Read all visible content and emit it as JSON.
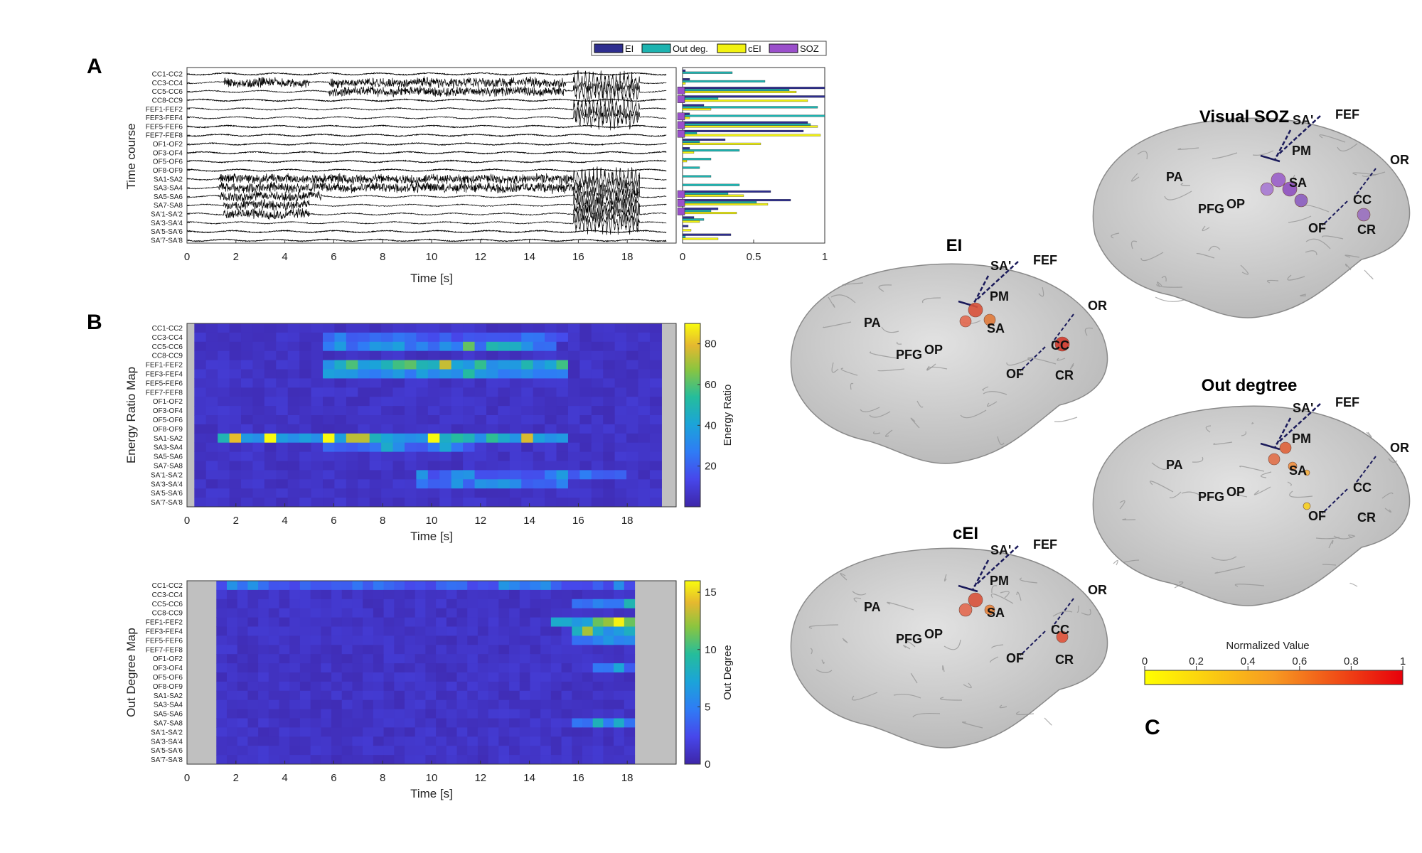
{
  "panel_labels": {
    "a": "A",
    "b": "B",
    "c": "C"
  },
  "channels": [
    "CC1-CC2",
    "CC3-CC4",
    "CC5-CC6",
    "CC8-CC9",
    "FEF1-FEF2",
    "FEF3-FEF4",
    "FEF5-FEF6",
    "FEF7-FEF8",
    "OF1-OF2",
    "OF3-OF4",
    "OF5-OF6",
    "OF8-OF9",
    "SA1-SA2",
    "SA3-SA4",
    "SA5-SA6",
    "SA7-SA8",
    "SA'1-SA'2",
    "SA'3-SA'4",
    "SA'5-SA'6",
    "SA'7-SA'8"
  ],
  "colors": {
    "ei": "#2e2e8f",
    "outdeg": "#1db3b0",
    "cei": "#f2f210",
    "soz": "#9a4fcb",
    "cbar_low": "#ffff00",
    "cbar_high": "#e8000b"
  },
  "brains": [
    {
      "key": "ei",
      "title": "EI"
    },
    {
      "key": "cei",
      "title": "cEI"
    },
    {
      "key": "soz",
      "title": "Visual SOZ"
    },
    {
      "key": "outdeg",
      "title": "Out degtree"
    }
  ],
  "regions": [
    "SA'",
    "FEF",
    "PM",
    "SA",
    "OR",
    "PA",
    "PFG",
    "OP",
    "CC",
    "OF",
    "CR"
  ],
  "chart_data": [
    {
      "type": "line",
      "title": "",
      "ylabel": "Time course",
      "xlabel": "Time [s]",
      "xlim": [
        0,
        20
      ],
      "xticks": [
        0,
        2,
        4,
        6,
        8,
        10,
        12,
        14,
        16,
        18
      ],
      "series_are": "one iEEG trace per channel (bipolar montage)",
      "active_intervals_s": {
        "CC3-CC4": [
          [
            1.5,
            5.0
          ],
          [
            5.8,
            15.5
          ],
          [
            15.8,
            18.5
          ]
        ],
        "CC5-CC6": [
          [
            5.8,
            15.5
          ],
          [
            15.8,
            18.5
          ]
        ],
        "FEF1-FEF2": [
          [
            15.8,
            18.5
          ]
        ],
        "FEF3-FEF4": [
          [
            15.8,
            18.5
          ]
        ],
        "SA1-SA2": [
          [
            1.3,
            5.5
          ],
          [
            5.5,
            9.0
          ],
          [
            9.0,
            18.5
          ]
        ],
        "SA3-SA4": [
          [
            1.3,
            5.5
          ],
          [
            5.5,
            9.0
          ],
          [
            9.0,
            18.5
          ]
        ],
        "SA5-SA6": [
          [
            1.3,
            5.5
          ],
          [
            15.8,
            18.5
          ]
        ],
        "SA7-SA8": [
          [
            1.5,
            5.0
          ],
          [
            15.8,
            18.5
          ]
        ],
        "SA'1-SA'2": [
          [
            1.5,
            5.0
          ],
          [
            15.8,
            18.5
          ]
        ],
        "SA'3-SA'4": [
          [
            15.8,
            18.5
          ]
        ]
      }
    },
    {
      "type": "bar",
      "orientation": "horizontal",
      "xlim": [
        0,
        1
      ],
      "xticks": [
        0,
        0.5,
        1
      ],
      "legend": [
        "EI",
        "Out deg.",
        "cEI",
        "SOZ"
      ],
      "legend_position": "top",
      "series": [
        {
          "name": "EI",
          "values": [
            0.02,
            0.05,
            1.0,
            1.0,
            0.15,
            0.05,
            0.88,
            0.85,
            0.3,
            0.05,
            0.0,
            0.0,
            0.0,
            0.0,
            0.62,
            0.76,
            0.25,
            0.08,
            0.04,
            0.34
          ]
        },
        {
          "name": "Out deg.",
          "values": [
            0.35,
            0.58,
            0.75,
            0.25,
            0.95,
            1.0,
            0.9,
            0.1,
            0.12,
            0.4,
            0.2,
            0.12,
            0.2,
            0.4,
            0.32,
            0.52,
            0.2,
            0.15,
            0.0,
            0.02
          ]
        },
        {
          "name": "cEI",
          "values": [
            0.0,
            0.02,
            0.8,
            0.88,
            0.2,
            0.05,
            0.95,
            0.97,
            0.55,
            0.08,
            0.03,
            0.0,
            0.0,
            0.0,
            0.43,
            0.6,
            0.38,
            0.12,
            0.06,
            0.25
          ]
        },
        {
          "name": "SOZ",
          "values": [
            0,
            0,
            1,
            1,
            0,
            1,
            1,
            1,
            0,
            0,
            0,
            0,
            0,
            0,
            1,
            1,
            1,
            0,
            0,
            0
          ]
        }
      ]
    },
    {
      "type": "heatmap",
      "ylabel": "Energy Ratio Map",
      "xlabel": "Time [s]",
      "xlim": [
        0,
        20
      ],
      "xticks": [
        0,
        2,
        4,
        6,
        8,
        10,
        12,
        14,
        16,
        18
      ],
      "colorbar_label": "Energy Ratio",
      "colorbar_ticks": [
        20,
        40,
        60,
        80
      ],
      "clim": [
        0,
        90
      ],
      "valid_time_s": [
        0.3,
        19.4
      ],
      "hotspots": [
        {
          "channel": "CC3-CC4",
          "t0": 5.5,
          "t1": 15.5,
          "peak": 35
        },
        {
          "channel": "CC5-CC6",
          "t0": 5.5,
          "t1": 15.0,
          "peak": 55
        },
        {
          "channel": "FEF1-FEF2",
          "t0": 5.5,
          "t1": 15.5,
          "peak": 90
        },
        {
          "channel": "FEF3-FEF4",
          "t0": 5.5,
          "t1": 15.5,
          "peak": 70
        },
        {
          "channel": "SA1-SA2",
          "t0": 1.0,
          "t1": 15.5,
          "peak": 90
        },
        {
          "channel": "SA3-SA4",
          "t0": 5.5,
          "t1": 11.5,
          "peak": 45
        },
        {
          "channel": "SA'1-SA'2",
          "t0": 9.0,
          "t1": 17.5,
          "peak": 40
        },
        {
          "channel": "SA'3-SA'4",
          "t0": 9.0,
          "t1": 15.5,
          "peak": 50
        }
      ]
    },
    {
      "type": "heatmap",
      "ylabel": "Out Degree Map",
      "xlabel": "Time [s]",
      "xlim": [
        0,
        20
      ],
      "xticks": [
        0,
        2,
        4,
        6,
        8,
        10,
        12,
        14,
        16,
        18
      ],
      "colorbar_label": "Out Degree",
      "colorbar_ticks": [
        0,
        5,
        10,
        15
      ],
      "clim": [
        0,
        16
      ],
      "valid_time_s": [
        1.2,
        18.3
      ],
      "hotspots": [
        {
          "channel": "CC1-CC2",
          "t0": 1.2,
          "t1": 18.3,
          "peak": 6
        },
        {
          "channel": "CC5-CC6",
          "t0": 15.5,
          "t1": 18.3,
          "peak": 11
        },
        {
          "channel": "FEF1-FEF2",
          "t0": 14.5,
          "t1": 18.3,
          "peak": 16
        },
        {
          "channel": "FEF3-FEF4",
          "t0": 15.5,
          "t1": 18.3,
          "peak": 14
        },
        {
          "channel": "FEF5-FEF6",
          "t0": 15.5,
          "t1": 18.3,
          "peak": 11
        },
        {
          "channel": "SA7-SA8",
          "t0": 15.5,
          "t1": 18.3,
          "peak": 10
        },
        {
          "channel": "OF3-OF4",
          "t0": 16.5,
          "t1": 18.3,
          "peak": 9
        }
      ]
    },
    {
      "type": "colorbar",
      "title": "Normalized Value",
      "ticks": [
        0,
        0.2,
        0.4,
        0.6,
        0.8,
        1
      ],
      "range": [
        0,
        1
      ]
    }
  ]
}
